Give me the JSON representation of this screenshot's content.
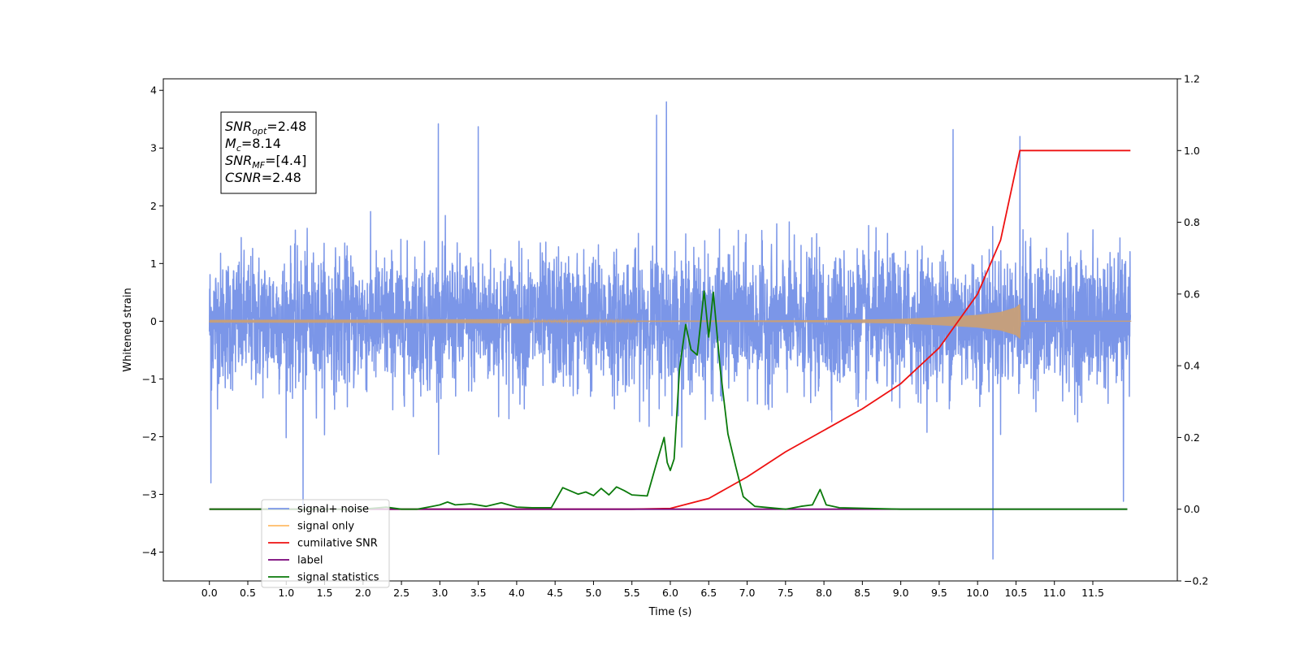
{
  "chart_data": {
    "type": "line",
    "xlabel": "Time (s)",
    "ylabel": "Whitened strain",
    "xlim": [
      -0.6,
      12.6
    ],
    "ylim": [
      -4.5,
      4.2
    ],
    "y2lim": [
      -0.2,
      1.2
    ],
    "x_ticks": [
      0.0,
      0.5,
      1.0,
      1.5,
      2.0,
      2.5,
      3.0,
      3.5,
      4.0,
      4.5,
      5.0,
      5.5,
      6.0,
      6.5,
      7.0,
      7.5,
      8.0,
      8.5,
      9.0,
      9.5,
      10.0,
      10.5,
      11.0,
      11.5
    ],
    "x_tick_labels": [
      "0.0",
      "0.5",
      "1.0",
      "1.5",
      "2.0",
      "2.5",
      "3.0",
      "3.5",
      "4.0",
      "4.5",
      "5.0",
      "5.5",
      "6.0",
      "6.5",
      "7.0",
      "7.5",
      "8.0",
      "8.5",
      "9.0",
      "9.5",
      "10.0",
      "10.5",
      "11.0",
      "11.5"
    ],
    "y_ticks": [
      -4,
      -3,
      -2,
      -1,
      0,
      1,
      2,
      3,
      4
    ],
    "y_tick_labels": [
      "−4",
      "−3",
      "−2",
      "−1",
      "0",
      "1",
      "2",
      "3",
      "4"
    ],
    "y2_ticks": [
      -0.2,
      0.0,
      0.2,
      0.4,
      0.6,
      0.8,
      1.0,
      1.2
    ],
    "y2_tick_labels": [
      "−0.2",
      "0.0",
      "0.2",
      "0.4",
      "0.6",
      "0.8",
      "1.0",
      "1.2"
    ],
    "grid": false,
    "legend_placement": "lower-left",
    "annotation": {
      "lines": [
        {
          "main": "SNR",
          "sub": "opt",
          "rest": "=2.48"
        },
        {
          "main": "M",
          "sub": "c",
          "rest": "=8.14"
        },
        {
          "main": "SNR",
          "sub": "MF",
          "rest": "=[4.4]"
        },
        {
          "main": "CSNR",
          "sub": "",
          "rest": "=2.48"
        }
      ]
    },
    "series": [
      {
        "name": "signal+ noise",
        "color": "#7b96e8",
        "axis": "left",
        "style": "noise",
        "x_range": [
          0.0,
          11.99
        ],
        "typical_amplitude": 1.7,
        "peaks": [
          {
            "x": 5.82,
            "y": 3.57
          },
          {
            "x": 5.95,
            "y": 3.8
          },
          {
            "x": 3.5,
            "y": 3.37
          },
          {
            "x": 2.98,
            "y": 3.42
          },
          {
            "x": 9.68,
            "y": 3.32
          },
          {
            "x": 10.55,
            "y": 3.2
          },
          {
            "x": 10.2,
            "y": -4.12
          },
          {
            "x": 1.22,
            "y": -3.18
          },
          {
            "x": 0.02,
            "y": -2.8
          },
          {
            "x": 11.9,
            "y": -3.12
          }
        ]
      },
      {
        "name": "signal only",
        "color": "#ffbb66",
        "axis": "left",
        "style": "chirp",
        "x": [
          0.0,
          2.0,
          4.0,
          6.0,
          7.0,
          8.0,
          9.0,
          9.5,
          10.0,
          10.3,
          10.5,
          10.55,
          10.56,
          12.0
        ],
        "envelope": [
          0.005,
          0.006,
          0.008,
          0.01,
          0.012,
          0.018,
          0.04,
          0.07,
          0.11,
          0.16,
          0.24,
          0.3,
          0.0,
          0.0
        ]
      },
      {
        "name": "cumilative SNR",
        "color": "#ee1111",
        "axis": "right",
        "x": [
          0.0,
          5.5,
          6.0,
          6.5,
          7.0,
          7.5,
          8.0,
          8.5,
          9.0,
          9.5,
          10.0,
          10.3,
          10.45,
          10.55,
          10.56,
          11.99
        ],
        "y": [
          0.0,
          0.0,
          0.002,
          0.03,
          0.09,
          0.16,
          0.22,
          0.28,
          0.35,
          0.45,
          0.6,
          0.75,
          0.9,
          1.0,
          1.0,
          1.0
        ]
      },
      {
        "name": "label",
        "color": "#770077",
        "axis": "right",
        "x": [
          0.0,
          11.95
        ],
        "y": [
          0.0,
          0.0
        ]
      },
      {
        "name": "signal statistics",
        "color": "#0a7a0a",
        "axis": "right",
        "x": [
          0.0,
          1.0,
          2.0,
          2.3,
          2.5,
          2.7,
          2.9,
          3.0,
          3.1,
          3.2,
          3.4,
          3.6,
          3.8,
          4.0,
          4.2,
          4.45,
          4.6,
          4.8,
          4.9,
          5.0,
          5.1,
          5.2,
          5.3,
          5.4,
          5.5,
          5.7,
          5.83,
          5.92,
          5.96,
          6.0,
          6.05,
          6.12,
          6.2,
          6.27,
          6.35,
          6.44,
          6.5,
          6.56,
          6.65,
          6.75,
          6.85,
          6.95,
          7.1,
          7.5,
          7.7,
          7.85,
          7.95,
          8.03,
          8.2,
          8.6,
          9.0,
          11.0,
          11.95
        ],
        "y": [
          0.0,
          0.0,
          0.0,
          0.006,
          0.0,
          0.0,
          0.008,
          0.012,
          0.02,
          0.012,
          0.015,
          0.008,
          0.018,
          0.006,
          0.004,
          0.004,
          0.06,
          0.042,
          0.048,
          0.038,
          0.058,
          0.04,
          0.062,
          0.052,
          0.04,
          0.037,
          0.135,
          0.2,
          0.13,
          0.108,
          0.14,
          0.39,
          0.515,
          0.445,
          0.43,
          0.608,
          0.48,
          0.605,
          0.39,
          0.21,
          0.12,
          0.035,
          0.008,
          0.0,
          0.008,
          0.012,
          0.055,
          0.012,
          0.004,
          0.002,
          0.0,
          0.0,
          0.0
        ]
      }
    ]
  }
}
